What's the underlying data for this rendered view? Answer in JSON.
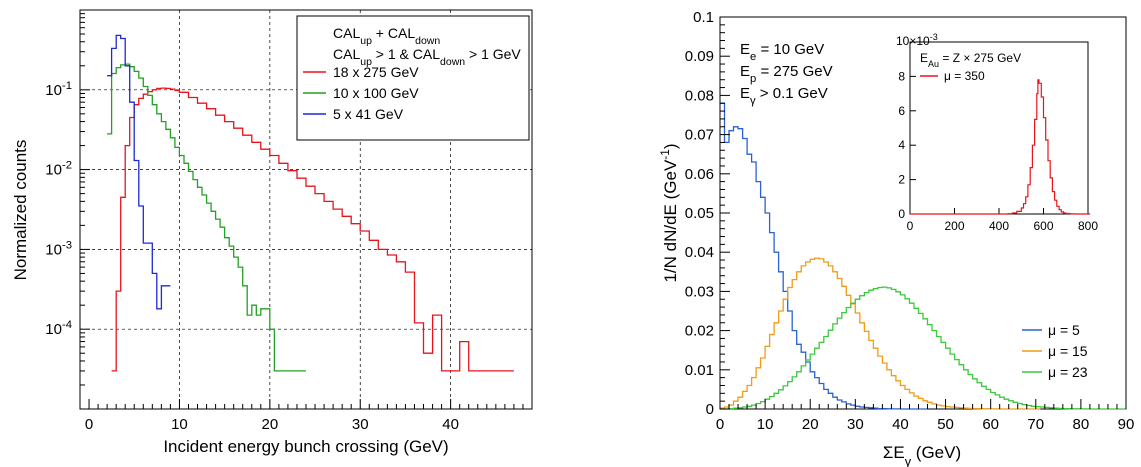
{
  "chart_data": [
    {
      "type": "line",
      "step": true,
      "log_y": true,
      "grid": true,
      "xlabel": "Incident energy bunch crossing (GeV)",
      "ylabel": "Normalized counts",
      "xlim": [
        -1,
        49
      ],
      "ylim": [
        1e-05,
        1
      ],
      "x_ticks": [
        0,
        10,
        20,
        30,
        40
      ],
      "y_ticks": [
        {
          "value": 0.1,
          "base": "10",
          "exp": "-1"
        },
        {
          "value": 0.01,
          "base": "10",
          "exp": "-2"
        },
        {
          "value": 0.001,
          "base": "10",
          "exp": "-3"
        },
        {
          "value": 0.0001,
          "base": "10",
          "exp": "-4"
        }
      ],
      "legend": {
        "placement": "top-right",
        "header": [
          [
            {
              "t": "CAL"
            },
            {
              "t": "up",
              "s": "sub"
            },
            {
              "t": " + CAL"
            },
            {
              "t": "down",
              "s": "sub"
            }
          ],
          [
            {
              "t": "CAL"
            },
            {
              "t": "up",
              "s": "sub"
            },
            {
              "t": " > 1 & CAL"
            },
            {
              "t": "down",
              "s": "sub"
            },
            {
              "t": " > 1 GeV"
            }
          ]
        ]
      },
      "series": [
        {
          "name": "18 x 275 GeV",
          "color": "#e8141c",
          "x": [
            2.5,
            3.0,
            3.5,
            4.0,
            4.5,
            5.0,
            5.5,
            6.0,
            6.5,
            7.0,
            7.5,
            8.0,
            8.5,
            9.0,
            9.5,
            10,
            11,
            12,
            13,
            14,
            15,
            16,
            17,
            18,
            19,
            20,
            21,
            22,
            23,
            24,
            25,
            26,
            27,
            28,
            29,
            30,
            31,
            32,
            33,
            34,
            35,
            36,
            37,
            38,
            39,
            40,
            41,
            42,
            43,
            44,
            45,
            46,
            46.5
          ],
          "y": [
            3e-05,
            0.0003,
            0.0045,
            0.02,
            0.045,
            0.065,
            0.078,
            0.088,
            0.095,
            0.1,
            0.104,
            0.105,
            0.104,
            0.102,
            0.098,
            0.093,
            0.08,
            0.068,
            0.058,
            0.048,
            0.04,
            0.033,
            0.027,
            0.022,
            0.018,
            0.015,
            0.012,
            0.0097,
            0.0078,
            0.0062,
            0.005,
            0.004,
            0.0032,
            0.0026,
            0.0021,
            0.0017,
            0.0013,
            0.001,
            0.00085,
            0.0007,
            0.00052,
            0.00012,
            5e-05,
            0.00015,
            3e-05,
            3e-05,
            7e-05,
            3e-05,
            3e-05,
            3e-05,
            3e-05,
            3e-05,
            3e-05
          ]
        },
        {
          "name": "10 x 100 GeV",
          "color": "#24a024",
          "x": [
            2.0,
            2.5,
            3.0,
            3.5,
            4.0,
            4.5,
            5.0,
            5.5,
            6.0,
            6.5,
            7.0,
            7.5,
            8.0,
            8.5,
            9.0,
            9.5,
            10,
            10.5,
            11,
            11.5,
            12,
            12.5,
            13,
            13.5,
            14,
            14.5,
            15,
            15.5,
            16,
            16.5,
            17,
            17.5,
            18,
            18.5,
            19,
            19.5,
            20,
            20.5,
            21,
            21.5,
            22,
            23
          ],
          "y": [
            0.028,
            0.16,
            0.19,
            0.205,
            0.21,
            0.195,
            0.17,
            0.14,
            0.11,
            0.085,
            0.065,
            0.05,
            0.04,
            0.032,
            0.025,
            0.019,
            0.015,
            0.012,
            0.0095,
            0.0075,
            0.006,
            0.0048,
            0.0038,
            0.003,
            0.0024,
            0.0019,
            0.0014,
            0.0011,
            0.0008,
            0.0006,
            0.00035,
            0.00015,
            0.0002,
            0.00015,
            0.00018,
            0.00018,
            0.0001,
            3e-05,
            3e-05,
            3e-05,
            3e-05,
            3e-05
          ]
        },
        {
          "name": " 5 x 41 GeV",
          "color": "#1c2ad6",
          "x": [
            2.0,
            2.5,
            3.0,
            3.5,
            4.0,
            4.5,
            5.0,
            5.5,
            6.0,
            6.5,
            7.0,
            7.5,
            8.0,
            8.5
          ],
          "y": [
            0.15,
            0.33,
            0.48,
            0.44,
            0.2,
            0.07,
            0.013,
            0.0035,
            0.0012,
            0.0012,
            0.0005,
            0.00018,
            0.00035,
            0.00035
          ]
        }
      ]
    },
    {
      "type": "line",
      "step": true,
      "grid": false,
      "xlabel": "ΣE",
      "xlabel_sub": "γ",
      "xlabel_unit": "  (GeV)",
      "ylabel": "1/N dN/dE (GeV",
      "ylabel_sup": "-1",
      "ylabel_end": ")",
      "xlim": [
        0,
        90
      ],
      "ylim": [
        0,
        0.1
      ],
      "x_ticks": [
        0,
        10,
        20,
        30,
        40,
        50,
        60,
        70,
        80,
        90
      ],
      "y_ticks": [
        0,
        0.01,
        0.02,
        0.03,
        0.04,
        0.05,
        0.06,
        0.07,
        0.08,
        0.09,
        0.1
      ],
      "annotations": [
        [
          {
            "t": "E"
          },
          {
            "t": "e",
            "s": "sub"
          },
          {
            "t": " = 10 GeV"
          }
        ],
        [
          {
            "t": "E"
          },
          {
            "t": "p",
            "s": "sub"
          },
          {
            "t": " = 275 GeV"
          }
        ],
        [
          {
            "t": "E"
          },
          {
            "t": "γ",
            "s": "sub"
          },
          {
            "t": " > 0.1 GeV"
          }
        ]
      ],
      "legend": {
        "placement": "bottom-right"
      },
      "series": [
        {
          "name": "μ = 5",
          "color": "#2a62d4",
          "x": [
            0,
            1,
            2,
            3,
            4,
            5,
            6,
            7,
            8,
            9,
            10,
            11,
            12,
            13,
            14,
            15,
            16,
            17,
            18,
            19,
            20,
            21,
            22,
            23,
            24,
            25,
            26,
            27,
            28,
            29,
            30,
            31,
            32,
            33,
            34,
            35,
            36,
            37,
            38,
            39,
            40,
            41,
            42,
            43,
            44,
            45
          ],
          "y": [
            0.078,
            0.068,
            0.071,
            0.072,
            0.0715,
            0.069,
            0.065,
            0.063,
            0.058,
            0.054,
            0.05,
            0.045,
            0.04,
            0.035,
            0.03,
            0.025,
            0.02,
            0.0165,
            0.0145,
            0.012,
            0.0095,
            0.008,
            0.0065,
            0.005,
            0.004,
            0.003,
            0.0023,
            0.0018,
            0.0013,
            0.001,
            0.0007,
            0.0005,
            0.0004,
            0.0003,
            0.0002,
            0.0001,
            0.0001,
            5e-05,
            3e-05,
            2e-05,
            1e-05,
            0,
            0,
            0,
            0,
            0
          ]
        },
        {
          "name": "μ = 15",
          "color": "#f09c14",
          "x": [
            0,
            1,
            2,
            3,
            4,
            5,
            6,
            7,
            8,
            9,
            10,
            11,
            12,
            13,
            14,
            15,
            16,
            17,
            18,
            19,
            20,
            21,
            22,
            23,
            24,
            25,
            26,
            27,
            28,
            29,
            30,
            31,
            32,
            33,
            34,
            35,
            36,
            37,
            38,
            39,
            40,
            41,
            42,
            43,
            44,
            45,
            46,
            47,
            48,
            49,
            50,
            51,
            52,
            53,
            54,
            55,
            56,
            57,
            58,
            59,
            60,
            61,
            62,
            63,
            64,
            65,
            66,
            67,
            68,
            69,
            70
          ],
          "y": [
            0.0002,
            0.0005,
            0.001,
            0.002,
            0.003,
            0.0045,
            0.006,
            0.008,
            0.0105,
            0.013,
            0.016,
            0.019,
            0.022,
            0.025,
            0.028,
            0.031,
            0.033,
            0.035,
            0.0365,
            0.0375,
            0.0382,
            0.0385,
            0.0383,
            0.0375,
            0.0365,
            0.035,
            0.0333,
            0.0313,
            0.029,
            0.0268,
            0.0245,
            0.022,
            0.0198,
            0.0175,
            0.0155,
            0.0135,
            0.0117,
            0.01,
            0.0085,
            0.0072,
            0.006,
            0.005,
            0.0041,
            0.0033,
            0.0027,
            0.0021,
            0.0017,
            0.0013,
            0.001,
            0.0008,
            0.0006,
            0.0005,
            0.0004,
            0.0003,
            0.0002,
            0.00015,
            0.0001,
            8e-05,
            5e-05,
            4e-05,
            3e-05,
            2e-05,
            1e-05,
            0,
            0,
            0,
            0,
            0,
            0,
            0,
            0
          ]
        },
        {
          "name": "μ = 23",
          "color": "#3ec83e",
          "x": [
            0,
            1,
            2,
            3,
            4,
            5,
            6,
            7,
            8,
            9,
            10,
            11,
            12,
            13,
            14,
            15,
            16,
            17,
            18,
            19,
            20,
            21,
            22,
            23,
            24,
            25,
            26,
            27,
            28,
            29,
            30,
            31,
            32,
            33,
            34,
            35,
            36,
            37,
            38,
            39,
            40,
            41,
            42,
            43,
            44,
            45,
            46,
            47,
            48,
            49,
            50,
            51,
            52,
            53,
            54,
            55,
            56,
            57,
            58,
            59,
            60,
            61,
            62,
            63,
            64,
            65,
            66,
            67,
            68,
            69,
            70,
            71,
            72,
            73,
            74,
            75,
            76,
            77,
            78,
            79,
            80,
            81,
            82,
            83,
            84,
            85,
            86,
            87,
            88,
            89
          ],
          "y": [
            0,
            0,
            0.0001,
            0.0002,
            0.0003,
            0.0005,
            0.0007,
            0.001,
            0.0014,
            0.0019,
            0.0025,
            0.0032,
            0.004,
            0.0049,
            0.0059,
            0.007,
            0.0082,
            0.0095,
            0.011,
            0.0125,
            0.014,
            0.0155,
            0.017,
            0.0185,
            0.0201,
            0.0217,
            0.0232,
            0.0246,
            0.0259,
            0.027,
            0.028,
            0.0289,
            0.0297,
            0.0303,
            0.0307,
            0.031,
            0.0311,
            0.0309,
            0.0305,
            0.0299,
            0.0291,
            0.0281,
            0.027,
            0.0257,
            0.0244,
            0.023,
            0.0215,
            0.02,
            0.0185,
            0.017,
            0.0155,
            0.014,
            0.0126,
            0.0113,
            0.01,
            0.0088,
            0.0077,
            0.0067,
            0.0058,
            0.005,
            0.0042,
            0.0036,
            0.003,
            0.0025,
            0.0021,
            0.0017,
            0.0014,
            0.0011,
            0.0009,
            0.0007,
            0.0006,
            0.0005,
            0.0004,
            0.0003,
            0.0002,
            0.00015,
            0.0001,
            8e-05,
            6e-05,
            4e-05,
            3e-05,
            2e-05,
            1e-05,
            0,
            0,
            0,
            0,
            0,
            0,
            0
          ]
        }
      ],
      "inset": {
        "exponent_label": "10",
        "exponent_sup": "-3",
        "xlim": [
          0,
          800
        ],
        "ylim": [
          0,
          10
        ],
        "x_ticks": [
          0,
          200,
          400,
          600,
          800
        ],
        "y_ticks": [
          0,
          2,
          4,
          6,
          8,
          10
        ],
        "annotation": [
          {
            "t": "E"
          },
          {
            "t": "Au",
            "s": "sub"
          },
          {
            "t": " = Z × 275 GeV"
          }
        ],
        "series": [
          {
            "name": "μ = 350",
            "color": "#e8141c",
            "x": [
              0,
              420,
              440,
              460,
              480,
              500,
              510,
              520,
              530,
              540,
              550,
              560,
              570,
              575,
              580,
              590,
              600,
              610,
              620,
              630,
              640,
              650,
              660,
              670,
              680,
              690,
              700,
              720,
              740,
              800
            ],
            "y": [
              0,
              0,
              0.02,
              0.06,
              0.15,
              0.35,
              0.6,
              1.0,
              1.7,
              2.7,
              4.0,
              5.5,
              7.0,
              7.8,
              7.6,
              6.8,
              5.6,
              4.3,
              3.1,
              2.1,
              1.3,
              0.8,
              0.45,
              0.25,
              0.12,
              0.06,
              0.03,
              0.01,
              0,
              0
            ]
          }
        ]
      }
    }
  ]
}
